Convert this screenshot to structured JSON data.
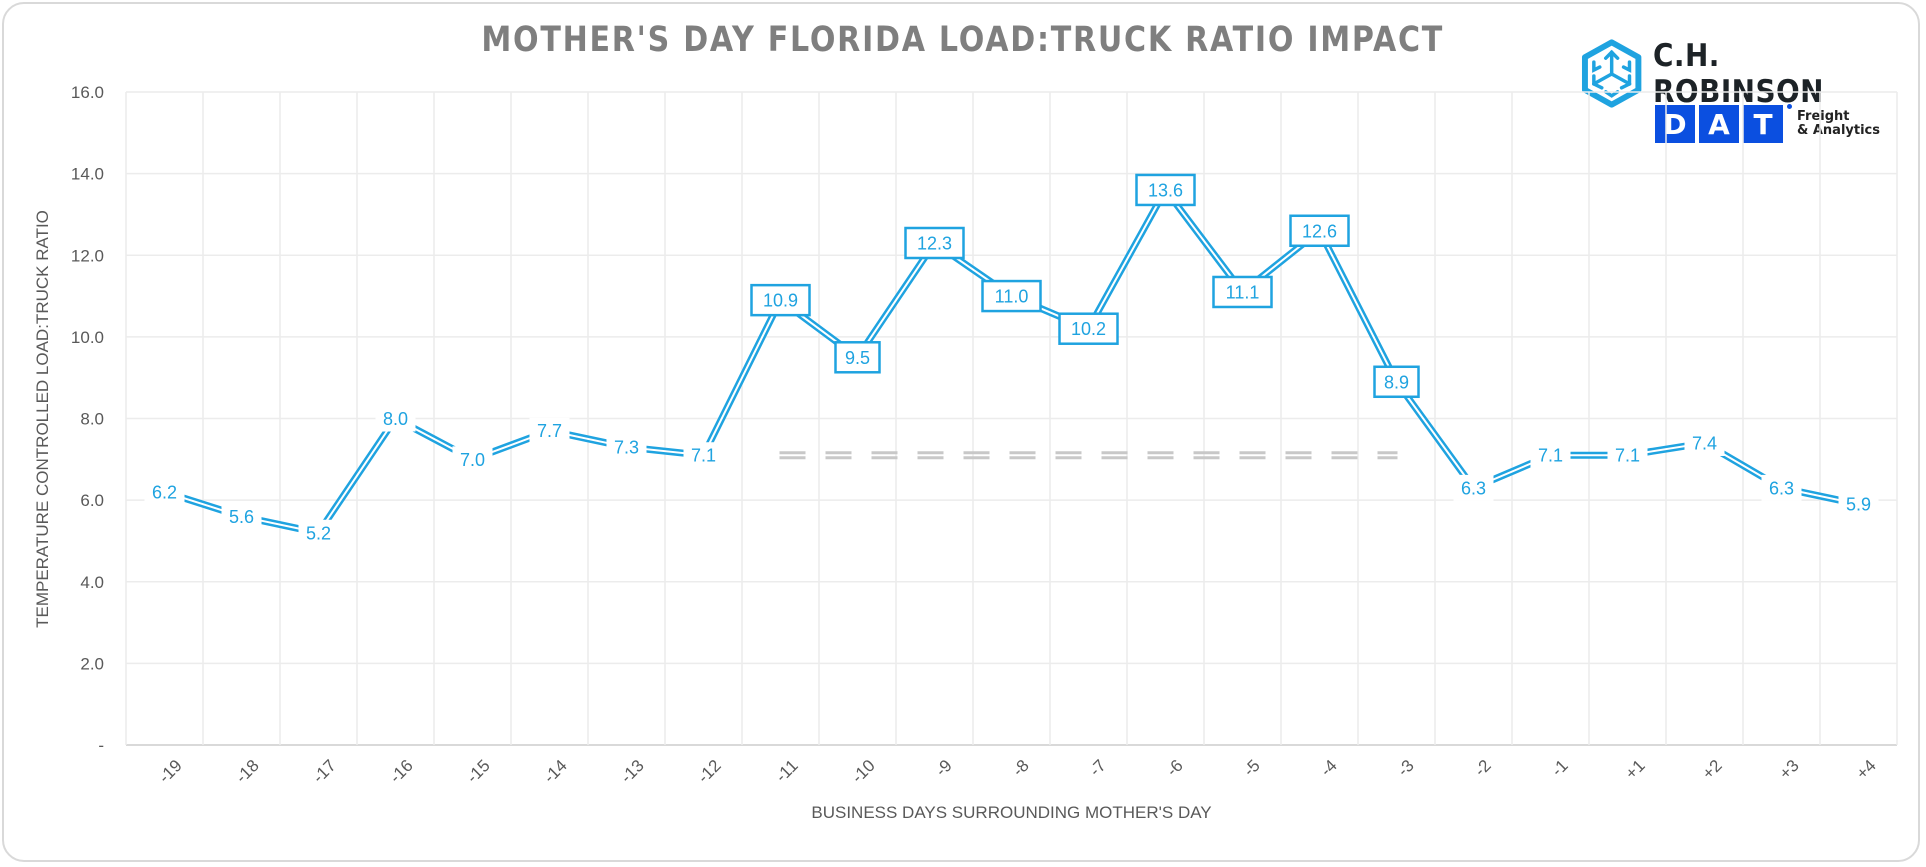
{
  "chart_data": {
    "type": "line",
    "title": "MOTHER'S DAY FLORIDA LOAD:TRUCK RATIO IMPACT",
    "xlabel": "BUSINESS DAYS SURROUNDING MOTHER'S DAY",
    "ylabel": "TEMPERATURE CONTROLLED LOAD:TRUCK RATIO",
    "categories": [
      "-19",
      "-18",
      "-17",
      "-16",
      "-15",
      "-14",
      "-13",
      "-12",
      "-11",
      "-10",
      "-9",
      "-8",
      "-7",
      "-6",
      "-5",
      "-4",
      "-3",
      "-2",
      "-1",
      "+1",
      "+2",
      "+3",
      "+4"
    ],
    "series": [
      {
        "name": "Load:Truck Ratio",
        "color": "#1fa3e0",
        "values": [
          6.2,
          5.6,
          5.2,
          8.0,
          7.0,
          7.7,
          7.3,
          7.1,
          10.9,
          9.5,
          12.3,
          11.0,
          10.2,
          13.6,
          11.1,
          12.6,
          8.9,
          6.3,
          7.1,
          7.1,
          7.4,
          6.3,
          5.9
        ],
        "data_labels": [
          "6.2",
          "5.6",
          "5.2",
          "8.0",
          "7.0",
          "7.7",
          "7.3",
          "7.1",
          "10.9",
          "9.5",
          "12.3",
          "11.0",
          "10.2",
          "13.6",
          "11.1",
          "12.6",
          "8.9",
          "6.3",
          "7.1",
          "7.1",
          "7.4",
          "6.3",
          "5.9"
        ],
        "highlighted_range": [
          "-11",
          "-3"
        ]
      },
      {
        "name": "Baseline reference",
        "color": "#c8c8c8",
        "style": "dashed",
        "value": 7.1,
        "range": [
          "-11",
          "-3"
        ]
      }
    ],
    "ylim": [
      0,
      16
    ],
    "yticks": [
      0,
      2,
      4,
      6,
      8,
      10,
      12,
      14,
      16
    ],
    "ytick_labels": [
      "-",
      "2.0",
      "4.0",
      "6.0",
      "8.0",
      "10.0",
      "12.0",
      "14.0",
      "16.0"
    ],
    "grid": true,
    "legend": "none"
  },
  "logos": {
    "chr_name": "C.H. ROBINSON",
    "chr_icon": "hexagon-cube-arrows-icon",
    "dat_letters": [
      "D",
      "A",
      "T"
    ],
    "dat_sub_1": "Freight",
    "dat_sub_2": "& Analytics",
    "chr_color": "#1fa3e0",
    "dat_color": "#0b4fe0"
  }
}
